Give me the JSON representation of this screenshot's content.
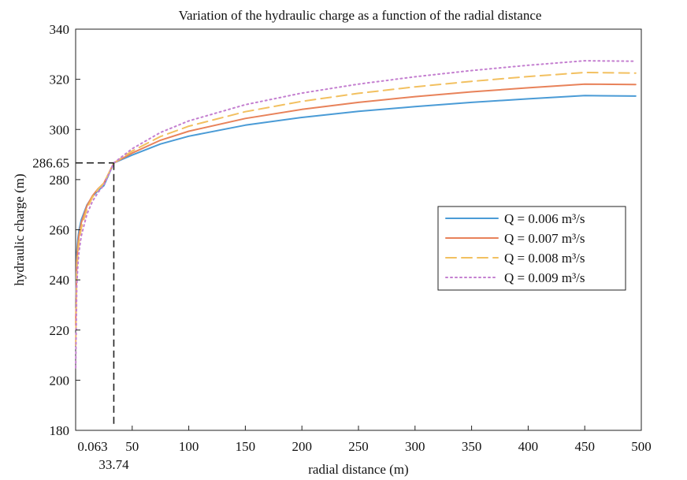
{
  "chart_data": {
    "type": "line",
    "title": "Variation of the hydraulic charge as a function of the radial distance",
    "xlabel": "radial distance (m)",
    "ylabel": "hydraulic charge (m)",
    "xlim": [
      0,
      500
    ],
    "ylim": [
      180,
      340
    ],
    "x_ticks": [
      50,
      100,
      150,
      200,
      250,
      300,
      350,
      400,
      450,
      500
    ],
    "y_ticks": [
      180,
      200,
      220,
      240,
      260,
      280,
      300,
      320,
      340
    ],
    "grid": false,
    "legend_position": "right",
    "x": [
      0.063,
      1,
      2,
      3,
      5,
      10,
      15,
      20,
      25,
      33.74,
      50,
      75,
      100,
      150,
      200,
      250,
      300,
      350,
      400,
      450,
      495
    ],
    "series": [
      {
        "name": "Q  = 0.006 m³/s",
        "color": "#4a9bd6",
        "style": "solid",
        "values": [
          229.0,
          250.6,
          256.4,
          259.8,
          264.0,
          269.9,
          273.3,
          275.7,
          277.6,
          286.65,
          289.8,
          294.2,
          297.3,
          301.7,
          304.8,
          307.2,
          309.1,
          310.8,
          312.2,
          313.5,
          313.3
        ]
      },
      {
        "name": "Q  = 0.007 m³/s",
        "color": "#e8825a",
        "style": "solid",
        "values": [
          222.0,
          247.2,
          254.0,
          257.9,
          262.8,
          269.6,
          273.6,
          276.4,
          278.6,
          286.65,
          290.6,
          295.7,
          299.3,
          304.4,
          308.0,
          310.8,
          313.1,
          315.0,
          316.6,
          318.1,
          317.9
        ]
      },
      {
        "name": "Q  = 0.008 m³/s",
        "color": "#f2c060",
        "style": "dashed",
        "values": [
          214.0,
          242.9,
          250.6,
          255.1,
          260.7,
          268.4,
          273.0,
          276.2,
          278.7,
          286.65,
          291.4,
          297.2,
          301.3,
          307.1,
          311.2,
          314.4,
          317.0,
          319.2,
          321.1,
          322.7,
          322.5
        ]
      },
      {
        "name": "Q  = 0.009 m³/s",
        "color": "#c47fd0",
        "style": "dotted",
        "values": [
          205.0,
          237.5,
          246.2,
          251.3,
          257.6,
          266.3,
          271.4,
          275.0,
          277.8,
          286.65,
          292.3,
          298.8,
          303.4,
          309.9,
          314.5,
          318.1,
          321.0,
          323.5,
          325.6,
          327.4,
          327.2
        ]
      }
    ],
    "annotations": {
      "point": {
        "x": 33.74,
        "y": 286.65
      },
      "x_label": "33.74",
      "y_label": "286.65",
      "x_min_label": "0.063"
    }
  }
}
